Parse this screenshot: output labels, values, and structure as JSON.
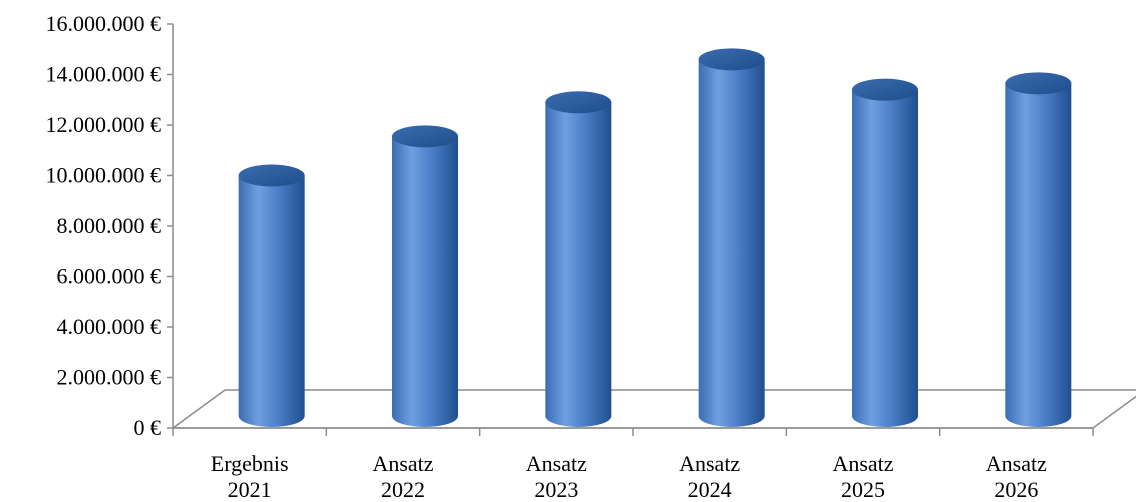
{
  "chart_data": {
    "type": "bar",
    "style": "3d-cylinder",
    "title": "",
    "xlabel": "",
    "ylabel": "",
    "categories": [
      [
        "Ergebnis",
        "2021"
      ],
      [
        "Ansatz",
        "2022"
      ],
      [
        "Ansatz",
        "2023"
      ],
      [
        "Ansatz",
        "2024"
      ],
      [
        "Ansatz",
        "2025"
      ],
      [
        "Ansatz",
        "2026"
      ]
    ],
    "values": [
      10000000,
      11550000,
      12900000,
      14600000,
      13400000,
      13650000
    ],
    "ylim": [
      0,
      16000000
    ],
    "yticks": [
      0,
      2000000,
      4000000,
      6000000,
      8000000,
      10000000,
      12000000,
      14000000,
      16000000
    ],
    "ytick_labels": [
      "0 €",
      "2.000.000 €",
      "4.000.000 €",
      "6.000.000 €",
      "8.000.000 €",
      "10.000.000 €",
      "12.000.000 €",
      "14.000.000 €",
      "16.000.000 €"
    ],
    "grid": false,
    "legend": "none",
    "colors": {
      "bar_light": "#6f9fe0",
      "bar_mid": "#4a7ec6",
      "bar_dark": "#1f4f8f",
      "bar_top": "#2d5e9e",
      "axis": "#8c8c8c"
    }
  }
}
